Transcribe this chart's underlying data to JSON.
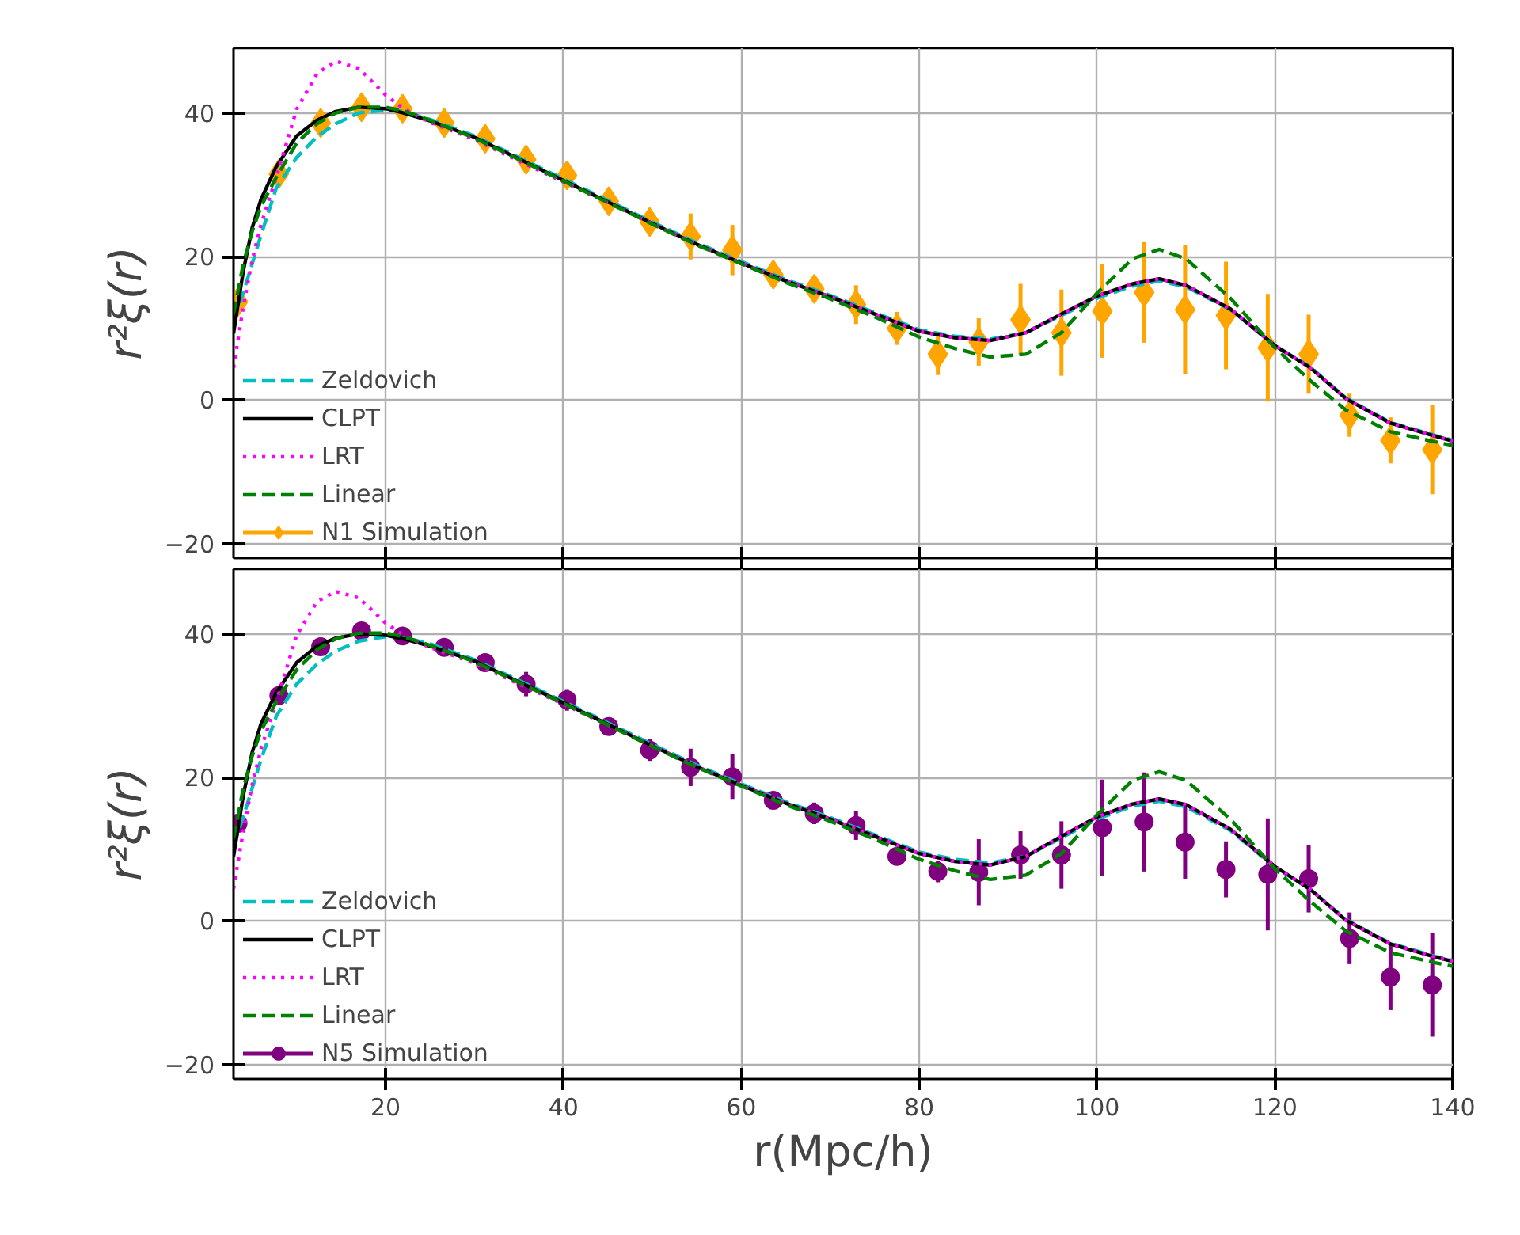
{
  "chart_data": [
    {
      "type": "line",
      "ylabel": "r²ξ(r)",
      "xlim": [
        2.9,
        140
      ],
      "ylim": [
        -22,
        49
      ],
      "xticks": [
        20,
        40,
        60,
        80,
        100,
        120,
        140
      ],
      "yticks": [
        {
          "value": -20,
          "label": "−20"
        },
        0,
        20,
        40
      ],
      "grid": true,
      "legend": "bottom left",
      "tick_labels": "y",
      "series": [
        {
          "name": "Zeldovich",
          "color": "#00bfbf",
          "line_style": "dashed",
          "x": [
            2.9,
            4,
            5,
            6,
            7.7,
            10,
            12.3,
            14.4,
            17,
            20,
            22,
            25,
            30,
            35,
            40,
            45,
            50,
            55,
            60,
            65,
            70,
            75,
            80,
            84,
            88,
            92,
            96,
            100,
            104,
            107,
            110,
            115,
            120,
            124,
            128,
            133,
            138,
            140
          ],
          "values": [
            11,
            15,
            19,
            23,
            29.5,
            33.8,
            36.7,
            38.5,
            40.0,
            40.4,
            40.2,
            39.1,
            36.8,
            33.8,
            30.8,
            27.8,
            24.8,
            21.9,
            19.3,
            16.8,
            14.6,
            12.2,
            9.8,
            8.9,
            8.5,
            9.4,
            11.8,
            14.2,
            15.9,
            16.6,
            15.8,
            12.6,
            7.6,
            4.6,
            0.3,
            -3.1,
            -4.9,
            -5.6
          ]
        },
        {
          "name": "CLPT",
          "color": "#000000",
          "line_style": "solid",
          "x": [
            2.9,
            4,
            5,
            6,
            7.7,
            10,
            12.3,
            14.4,
            17,
            20,
            22,
            25,
            30,
            35,
            40,
            45,
            50,
            55,
            60,
            65,
            70,
            75,
            80,
            84,
            88,
            92,
            96,
            100,
            104,
            107,
            110,
            115,
            120,
            124,
            128,
            133,
            138,
            140
          ],
          "values": [
            9.3,
            18,
            24,
            28,
            32.5,
            36.8,
            39.0,
            40.2,
            40.8,
            40.6,
            40.0,
            38.9,
            36.6,
            33.6,
            30.6,
            27.6,
            24.6,
            21.7,
            19.1,
            16.6,
            14.4,
            12.0,
            9.6,
            8.7,
            8.3,
            9.4,
            12.0,
            14.5,
            16.2,
            16.9,
            16.0,
            12.7,
            7.6,
            4.5,
            0.2,
            -3.2,
            -5.0,
            -5.7
          ]
        },
        {
          "name": "LRT",
          "color": "#ff00ff",
          "line_style": "dotted",
          "x": [
            2.9,
            4,
            5,
            6,
            7.7,
            10,
            12.3,
            14.4,
            17,
            20,
            22,
            25,
            30,
            35,
            40,
            45,
            50,
            55,
            60,
            65,
            70,
            75,
            80,
            84,
            88,
            92,
            96,
            100,
            104,
            107,
            110,
            115,
            120,
            124,
            128,
            133,
            138,
            140
          ],
          "values": [
            4.5,
            13,
            19.5,
            24.5,
            31,
            40.5,
            45.5,
            47.2,
            46.2,
            42.5,
            40.6,
            38.7,
            36.3,
            33.3,
            30.4,
            27.5,
            24.6,
            21.7,
            19.1,
            16.6,
            14.4,
            12.0,
            9.6,
            8.7,
            8.3,
            9.4,
            12.0,
            14.5,
            16.2,
            16.9,
            16.0,
            12.7,
            7.6,
            4.5,
            0.2,
            -3.2,
            -5.0,
            -5.7
          ]
        },
        {
          "name": "Linear",
          "color": "#008000",
          "line_style": "dashed",
          "x": [
            2.9,
            4,
            5,
            6,
            7.7,
            10,
            12.3,
            14.4,
            17,
            20,
            22,
            25,
            30,
            35,
            40,
            45,
            50,
            55,
            60,
            65,
            70,
            75,
            80,
            84,
            88,
            92,
            96,
            100,
            104,
            107,
            110,
            115,
            120,
            124,
            128,
            133,
            138,
            140
          ],
          "values": [
            12,
            19,
            23.5,
            27,
            31,
            35.8,
            38.5,
            40.0,
            40.8,
            40.8,
            40.3,
            39.0,
            36.5,
            33.5,
            30.5,
            27.5,
            24.5,
            21.6,
            19.0,
            16.4,
            14.1,
            11.6,
            8.8,
            7.2,
            6.0,
            6.4,
            9.4,
            14.9,
            19.7,
            21.0,
            19.7,
            14.2,
            7.3,
            2.7,
            -1.4,
            -4.4,
            -5.8,
            -6.3
          ]
        },
        {
          "name": "N1 Simulation",
          "color": "#ffa500",
          "type": "scatter",
          "marker": "diamond",
          "x": [
            3.4,
            8.0,
            12.7,
            17.3,
            21.9,
            26.6,
            31.2,
            35.8,
            40.4,
            45.1,
            49.7,
            54.3,
            59.0,
            63.6,
            68.2,
            72.9,
            77.5,
            82.1,
            86.7,
            91.4,
            96.0,
            100.6,
            105.3,
            109.9,
            114.5,
            119.2,
            123.8,
            128.4,
            133.0,
            137.7
          ],
          "values": [
            13.7,
            31.5,
            38.6,
            40.8,
            40.6,
            38.6,
            36.4,
            33.5,
            31.3,
            27.7,
            24.8,
            22.8,
            20.9,
            17.5,
            15.5,
            13.3,
            10.0,
            6.4,
            8.1,
            11.2,
            9.4,
            12.4,
            15.0,
            12.6,
            11.8,
            7.3,
            6.4,
            -2.1,
            -5.6,
            -6.9
          ],
          "errors": [
            null,
            null,
            null,
            null,
            null,
            null,
            null,
            null,
            null,
            1.5,
            1.2,
            3.2,
            3.5,
            1.2,
            1.2,
            2.7,
            2.3,
            2.9,
            3.3,
            5,
            6,
            6.5,
            7,
            9,
            7.5,
            7.5,
            5.5,
            3,
            3.2,
            6.2
          ]
        }
      ]
    },
    {
      "type": "line",
      "xlabel": "r(Mpc/h)",
      "ylabel": "r²ξ(r)",
      "xlim": [
        2.9,
        140
      ],
      "ylim": [
        -22,
        49
      ],
      "xticks": [
        20,
        40,
        60,
        80,
        100,
        120,
        140
      ],
      "yticks": [
        {
          "value": -20,
          "label": "−20"
        },
        0,
        20,
        40
      ],
      "grid": true,
      "legend": "bottom left",
      "series": [
        {
          "name": "Zeldovich",
          "color": "#00bfbf",
          "line_style": "dashed",
          "x": [
            2.9,
            4,
            5,
            6,
            7.7,
            10,
            12.3,
            14.4,
            17,
            20,
            22,
            25,
            30,
            35,
            40,
            45,
            50,
            55,
            60,
            65,
            70,
            75,
            80,
            84,
            88,
            92,
            96,
            100,
            104,
            107,
            110,
            115,
            120,
            124,
            128,
            133,
            138,
            140
          ],
          "values": [
            10.5,
            14.5,
            18.5,
            22.5,
            28.5,
            33.0,
            35.8,
            37.6,
            39.0,
            39.6,
            39.5,
            38.6,
            36.4,
            33.5,
            30.6,
            27.6,
            24.6,
            21.7,
            19.1,
            16.6,
            14.4,
            12.0,
            9.6,
            8.6,
            8.1,
            9.0,
            11.6,
            14.2,
            16.0,
            16.7,
            15.9,
            12.6,
            7.5,
            4.4,
            0.2,
            -3.1,
            -4.9,
            -5.5
          ]
        },
        {
          "name": "CLPT",
          "color": "#000000",
          "line_style": "solid",
          "x": [
            2.9,
            4,
            5,
            6,
            7.7,
            10,
            12.3,
            14.4,
            17,
            20,
            22,
            25,
            30,
            35,
            40,
            45,
            50,
            55,
            60,
            65,
            70,
            75,
            80,
            84,
            88,
            92,
            96,
            100,
            104,
            107,
            110,
            115,
            120,
            124,
            128,
            133,
            138,
            140
          ],
          "values": [
            9.0,
            17.5,
            23.5,
            27.5,
            31.8,
            36.0,
            38.3,
            39.4,
            40.0,
            39.8,
            39.3,
            38.3,
            36.2,
            33.3,
            30.4,
            27.4,
            24.4,
            21.5,
            18.9,
            16.4,
            14.2,
            11.8,
            9.4,
            8.3,
            7.8,
            9.0,
            11.8,
            14.5,
            16.3,
            17.0,
            16.2,
            12.8,
            7.6,
            4.4,
            0.1,
            -3.2,
            -5.0,
            -5.6
          ]
        },
        {
          "name": "LRT",
          "color": "#ff00ff",
          "line_style": "dotted",
          "x": [
            2.9,
            4,
            5,
            6,
            7.7,
            10,
            12.3,
            14.4,
            17,
            20,
            22,
            25,
            30,
            35,
            40,
            45,
            50,
            55,
            60,
            65,
            70,
            75,
            80,
            84,
            88,
            92,
            96,
            100,
            104,
            107,
            110,
            115,
            120,
            124,
            128,
            133,
            138,
            140
          ],
          "values": [
            4.5,
            12.5,
            19,
            24,
            30.5,
            39.8,
            44.5,
            45.9,
            45.0,
            41.5,
            39.8,
            38.1,
            35.9,
            33.0,
            30.2,
            27.3,
            24.4,
            21.5,
            18.9,
            16.4,
            14.2,
            11.8,
            9.4,
            8.3,
            7.8,
            9.0,
            11.8,
            14.5,
            16.3,
            17.0,
            16.2,
            12.8,
            7.6,
            4.4,
            0.1,
            -3.2,
            -5.0,
            -5.6
          ]
        },
        {
          "name": "Linear",
          "color": "#008000",
          "line_style": "dashed",
          "x": [
            2.9,
            4,
            5,
            6,
            7.7,
            10,
            12.3,
            14.4,
            17,
            20,
            22,
            25,
            30,
            35,
            40,
            45,
            50,
            55,
            60,
            65,
            70,
            75,
            80,
            84,
            88,
            92,
            96,
            100,
            104,
            107,
            110,
            115,
            120,
            124,
            128,
            133,
            138,
            140
          ],
          "values": [
            11.5,
            18.5,
            23,
            26.5,
            30.5,
            35.0,
            37.8,
            39.3,
            40.1,
            40.1,
            39.6,
            38.4,
            36.1,
            33.2,
            30.3,
            27.3,
            24.3,
            21.4,
            18.8,
            16.2,
            13.9,
            11.4,
            8.6,
            7.0,
            5.8,
            6.4,
            9.4,
            14.8,
            19.6,
            20.8,
            19.6,
            14.2,
            7.3,
            2.7,
            -1.4,
            -4.4,
            -5.8,
            -6.3
          ]
        },
        {
          "name": "N5 Simulation",
          "color": "#800080",
          "type": "scatter",
          "marker": "circle",
          "x": [
            3.4,
            8.0,
            12.7,
            17.3,
            21.9,
            26.6,
            31.2,
            35.8,
            40.4,
            45.1,
            49.7,
            54.3,
            59.0,
            63.6,
            68.2,
            72.9,
            77.5,
            82.1,
            86.7,
            91.4,
            96.0,
            100.6,
            105.3,
            109.9,
            114.5,
            119.2,
            123.8,
            128.4,
            133.0,
            137.7
          ],
          "values": [
            13.6,
            31.4,
            38.2,
            40.4,
            39.7,
            38.1,
            36.0,
            33.0,
            30.8,
            27.1,
            23.8,
            21.4,
            20.1,
            16.8,
            15.0,
            13.3,
            9.0,
            6.9,
            6.8,
            9.2,
            9.2,
            13.0,
            13.8,
            11.0,
            7.2,
            6.5,
            5.9,
            -2.4,
            -7.8,
            -8.9
          ],
          "errors": [
            null,
            null,
            null,
            null,
            null,
            null,
            null,
            1.7,
            1.5,
            null,
            1.5,
            2.6,
            3.1,
            null,
            1.5,
            2.0,
            null,
            1.5,
            4.6,
            3.3,
            4.7,
            6.7,
            6.9,
            5.1,
            3.9,
            7.8,
            4.7,
            3.6,
            4.6,
            7.2
          ]
        }
      ]
    }
  ]
}
